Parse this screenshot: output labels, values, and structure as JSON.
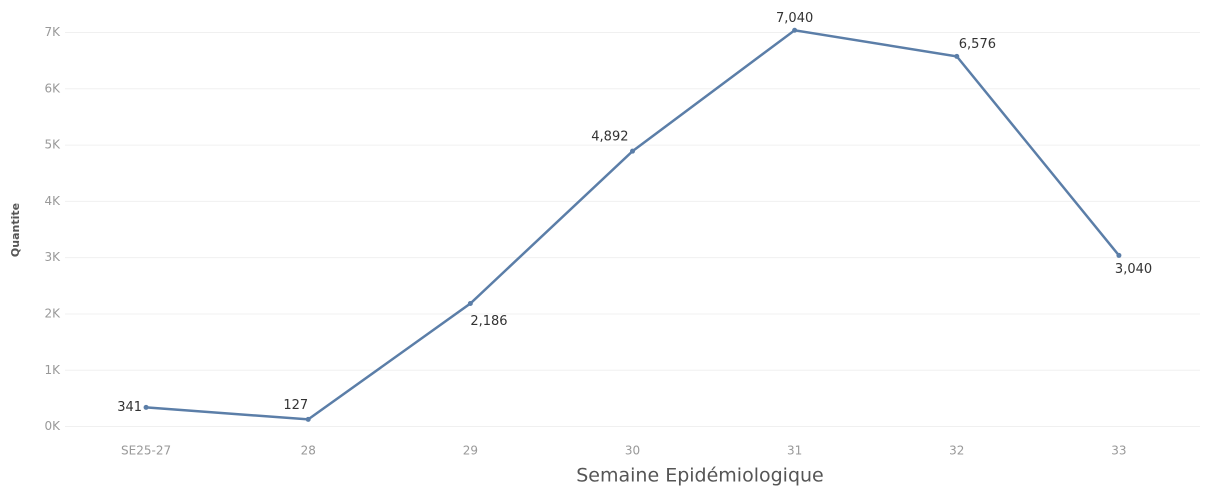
{
  "chart_data": {
    "type": "line",
    "x_label": "Semaine Epidémiologique",
    "y_label": "Quantite",
    "categories": [
      "SE25-27",
      "28",
      "29",
      "30",
      "31",
      "32",
      "33"
    ],
    "series": [
      {
        "name": "Quantite",
        "color": "#5b7ea8",
        "values": [
          341,
          127,
          2186,
          4892,
          7040,
          6576,
          3040
        ],
        "value_labels": [
          "341",
          "127",
          "2,186",
          "4,892",
          "7,040",
          "6,576",
          "3,040"
        ]
      }
    ],
    "ylim": [
      -150,
      7400
    ],
    "yticks": [
      {
        "value": 0,
        "label": "0K"
      },
      {
        "value": 1000,
        "label": "1K"
      },
      {
        "value": 2000,
        "label": "2K"
      },
      {
        "value": 3000,
        "label": "3K"
      },
      {
        "value": 4000,
        "label": "4K"
      },
      {
        "value": 5000,
        "label": "5K"
      },
      {
        "value": 6000,
        "label": "6K"
      },
      {
        "value": 7000,
        "label": "7K"
      }
    ],
    "grid": true
  }
}
